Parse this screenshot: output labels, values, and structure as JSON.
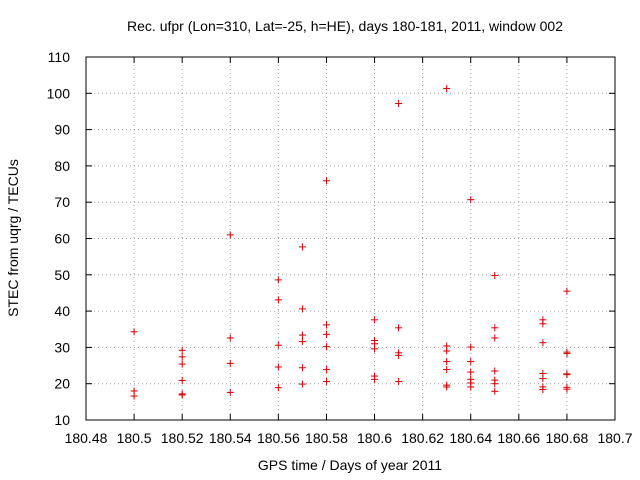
{
  "chart_data": {
    "type": "scatter",
    "title": "Rec. ufpr (Lon=310, Lat=-25, h=HE), days 180-181, 2011, window 002",
    "xlabel": "GPS time / Days of year 2011",
    "ylabel": "STEC from uqrg / TECUs",
    "xlim": [
      180.48,
      180.7
    ],
    "ylim": [
      10,
      110
    ],
    "xticks": [
      180.48,
      180.5,
      180.52,
      180.54,
      180.56,
      180.58,
      180.6,
      180.62,
      180.64,
      180.66,
      180.68,
      180.7
    ],
    "xtick_labels": [
      "180.48",
      "180.5",
      "180.52",
      "180.54",
      "180.56",
      "180.58",
      "180.6",
      "180.62",
      "180.64",
      "180.66",
      "180.68",
      "180.7"
    ],
    "yticks": [
      10,
      20,
      30,
      40,
      50,
      60,
      70,
      80,
      90,
      100,
      110
    ],
    "ytick_labels": [
      "10",
      "20",
      "30",
      "40",
      "50",
      "60",
      "70",
      "80",
      "90",
      "100",
      "110"
    ],
    "grid": true,
    "marker": "+",
    "color": "#d00000",
    "points": [
      [
        180.5,
        34.3
      ],
      [
        180.5,
        18.0
      ],
      [
        180.5,
        16.6
      ],
      [
        180.52,
        29.2
      ],
      [
        180.52,
        20.9
      ],
      [
        180.52,
        16.9
      ],
      [
        180.52,
        27.4
      ],
      [
        180.52,
        25.4
      ],
      [
        180.52,
        17.2
      ],
      [
        180.54,
        61.0
      ],
      [
        180.54,
        32.6
      ],
      [
        180.54,
        25.6
      ],
      [
        180.54,
        17.6
      ],
      [
        180.56,
        48.6
      ],
      [
        180.56,
        43.1
      ],
      [
        180.56,
        30.6
      ],
      [
        180.56,
        24.6
      ],
      [
        180.56,
        18.9
      ],
      [
        180.57,
        57.7
      ],
      [
        180.57,
        40.6
      ],
      [
        180.57,
        33.4
      ],
      [
        180.57,
        31.6
      ],
      [
        180.57,
        24.4
      ],
      [
        180.57,
        19.9
      ],
      [
        180.58,
        75.9
      ],
      [
        180.58,
        36.2
      ],
      [
        180.58,
        33.6
      ],
      [
        180.58,
        30.2
      ],
      [
        180.58,
        23.9
      ],
      [
        180.58,
        20.6
      ],
      [
        180.6,
        37.6
      ],
      [
        180.6,
        31.9
      ],
      [
        180.6,
        31.0
      ],
      [
        180.6,
        29.6
      ],
      [
        180.6,
        22.1
      ],
      [
        180.6,
        21.2
      ],
      [
        180.61,
        97.2
      ],
      [
        180.61,
        35.4
      ],
      [
        180.61,
        28.5
      ],
      [
        180.61,
        27.8
      ],
      [
        180.61,
        20.6
      ],
      [
        180.63,
        101.3
      ],
      [
        180.63,
        30.4
      ],
      [
        180.63,
        29.0
      ],
      [
        180.63,
        26.1
      ],
      [
        180.63,
        23.9
      ],
      [
        180.63,
        19.6
      ],
      [
        180.63,
        19.1
      ],
      [
        180.64,
        70.7
      ],
      [
        180.64,
        30.1
      ],
      [
        180.64,
        26.1
      ],
      [
        180.64,
        23.2
      ],
      [
        180.64,
        21.2
      ],
      [
        180.64,
        20.2
      ],
      [
        180.64,
        19.1
      ],
      [
        180.65,
        49.8
      ],
      [
        180.65,
        35.4
      ],
      [
        180.65,
        32.6
      ],
      [
        180.65,
        23.5
      ],
      [
        180.65,
        21.0
      ],
      [
        180.65,
        20.0
      ],
      [
        180.65,
        17.9
      ],
      [
        180.67,
        37.6
      ],
      [
        180.67,
        36.5
      ],
      [
        180.67,
        31.3
      ],
      [
        180.67,
        22.8
      ],
      [
        180.67,
        21.4
      ],
      [
        180.67,
        19.1
      ],
      [
        180.67,
        18.4
      ],
      [
        180.68,
        45.5
      ],
      [
        180.68,
        28.7
      ],
      [
        180.68,
        28.3
      ],
      [
        180.68,
        22.7
      ],
      [
        180.68,
        22.5
      ],
      [
        180.68,
        19.0
      ],
      [
        180.68,
        18.5
      ]
    ]
  }
}
